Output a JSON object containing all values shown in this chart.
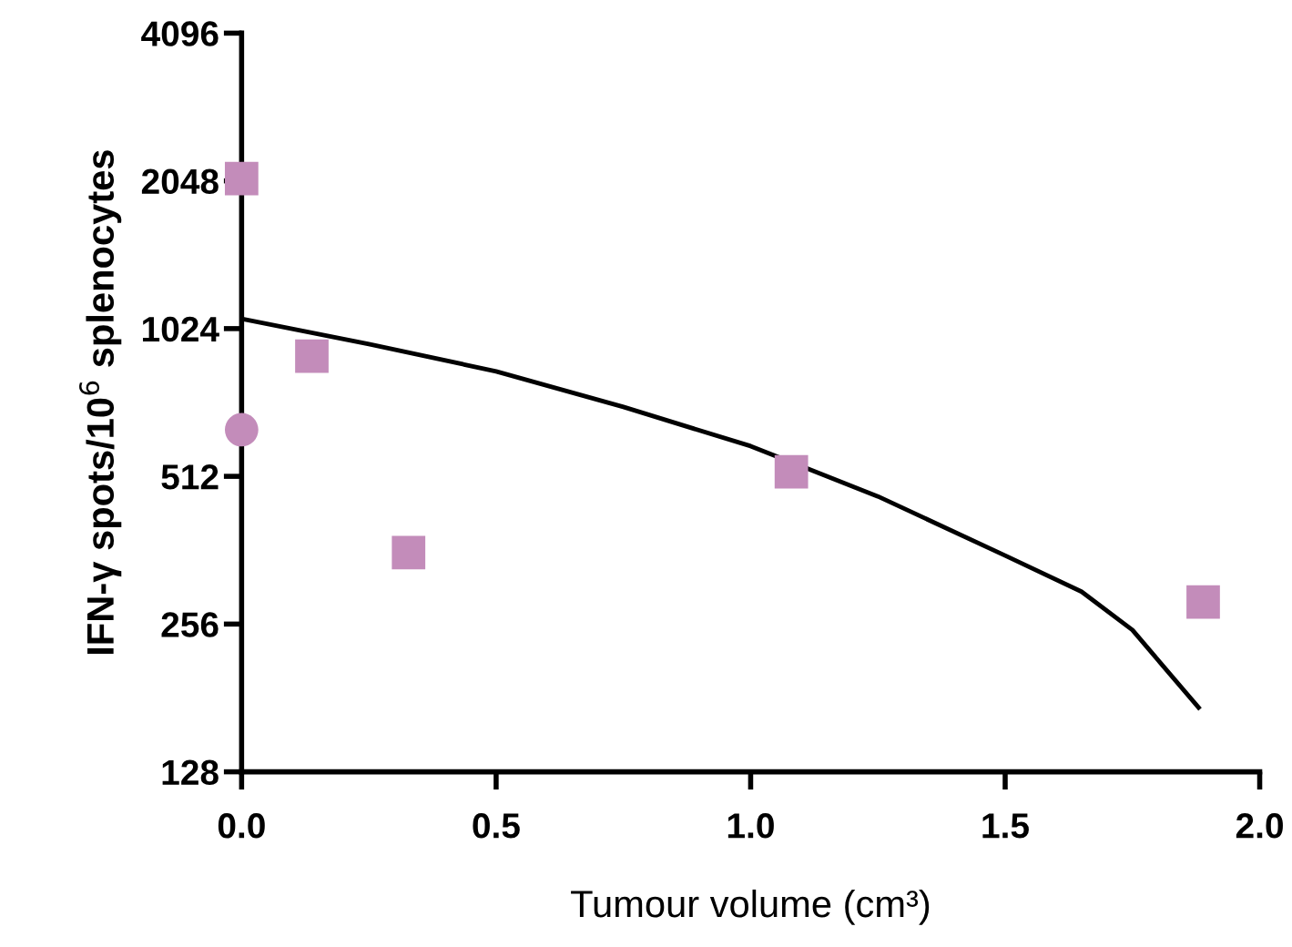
{
  "chart_data": {
    "type": "scatter",
    "xlabel": "Tumour volume (cm³)",
    "ylabel": "IFN-γ spots/10$^{6}$ splenocytes",
    "log": "y",
    "grid": false,
    "xlim": [
      0,
      2.0
    ],
    "xticks": [
      {
        "value": 0,
        "label": "0.0"
      },
      {
        "value": 0.5,
        "label": "0.5"
      },
      {
        "value": 1.0,
        "label": "1.0"
      },
      {
        "value": 1.5,
        "label": "1.5"
      },
      {
        "value": 2.0,
        "label": "2.0"
      }
    ],
    "ylim": [
      128,
      4096
    ],
    "yticks": [
      128,
      256,
      512,
      1024,
      2048,
      4096
    ],
    "series": [
      {
        "marker": "square",
        "color": "#c38cba",
        "x": [
          0,
          0.138,
          0.328,
          1.08,
          1.889
        ],
        "values": [
          2070,
          900,
          358,
          523,
          284
        ]
      },
      {
        "marker": "circle",
        "color": "#c38cba",
        "x": [
          0
        ],
        "values": [
          637
        ]
      },
      {
        "type": "line",
        "marker": "none",
        "line_style": "solid",
        "color": "#000000",
        "x": [
          0,
          0.25,
          0.5,
          0.75,
          1.0,
          1.25,
          1.5,
          1.65,
          1.75,
          1.88
        ],
        "values": [
          1072,
          952,
          838,
          709,
          590,
          466,
          353,
          298,
          249,
          173
        ]
      }
    ]
  }
}
